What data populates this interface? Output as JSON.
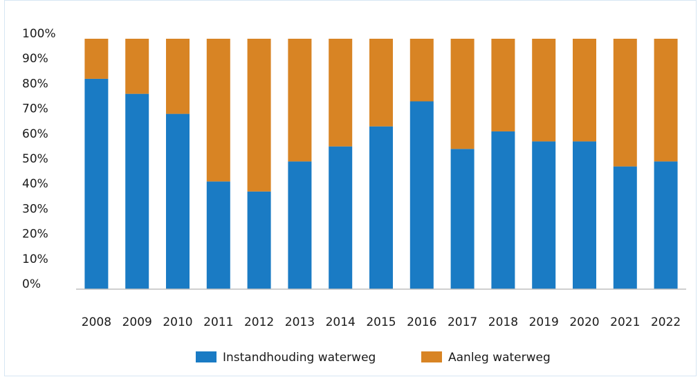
{
  "chart_data": {
    "type": "stacked_bar",
    "categories": [
      "2008",
      "2009",
      "2010",
      "2011",
      "2012",
      "2013",
      "2014",
      "2015",
      "2016",
      "2017",
      "2018",
      "2019",
      "2020",
      "2021",
      "2022"
    ],
    "series": [
      {
        "name": "Instandhouding waterweg",
        "color": "#1a7bc4",
        "values": [
          84,
          78,
          70,
          43,
          39,
          51,
          57,
          65,
          75,
          56,
          63,
          59,
          59,
          49,
          51
        ]
      },
      {
        "name": "Aanleg waterweg",
        "color": "#d88424",
        "values": [
          16,
          22,
          30,
          57,
          61,
          49,
          43,
          35,
          25,
          44,
          37,
          41,
          41,
          51,
          49
        ]
      }
    ],
    "ylim": [
      0,
      100
    ],
    "yticks": [
      {
        "value": 0,
        "label": "0%"
      },
      {
        "value": 10,
        "label": "10%"
      },
      {
        "value": 20,
        "label": "20%"
      },
      {
        "value": 30,
        "label": "30%"
      },
      {
        "value": 40,
        "label": "40%"
      },
      {
        "value": 50,
        "label": "50%"
      },
      {
        "value": 60,
        "label": "60%"
      },
      {
        "value": 70,
        "label": "70%"
      },
      {
        "value": 80,
        "label": "80%"
      },
      {
        "value": 90,
        "label": "90%"
      },
      {
        "value": 100,
        "label": "100%"
      }
    ],
    "legend": "bottom"
  }
}
